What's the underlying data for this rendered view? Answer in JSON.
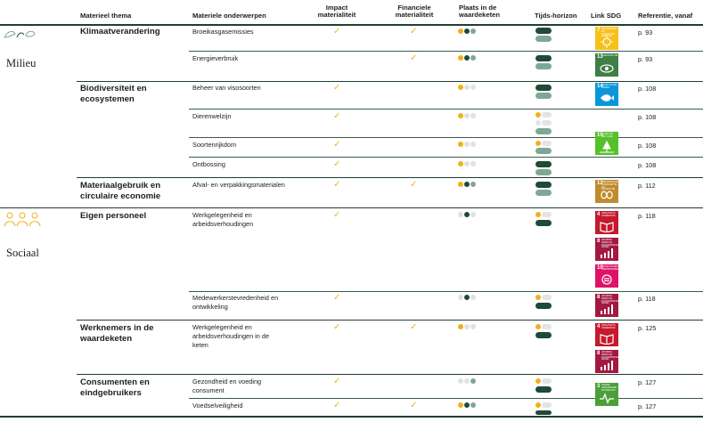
{
  "headers": {
    "theme": "Materieel thema",
    "topics": "Materiele onderwerpen",
    "impact": "Impact materialiteit",
    "financial": "Financiele materialiteit",
    "chain": "Plaats in de waardeketen",
    "horizon": "Tijds-horizon",
    "sdg": "Link SDG",
    "reference": "Referentie, vanaf"
  },
  "categories": {
    "environment": "Milieu",
    "social": "Sociaal"
  },
  "themes": {
    "climate": "Klimaatverandering",
    "biodiversity": "Biodiversiteit en ecosystemen",
    "materials": "Materiaalgebruik en circulaire economie",
    "own_staff": "Eigen personeel",
    "value_chain_workers": "Werknemers in de waardeketen",
    "consumers": "Consumenten en eindgebruikers"
  },
  "topics": {
    "ghg": "Broeikasgasemissies",
    "energy": "Energieverbruik",
    "fish": "Beheer van visosoorten",
    "animal": "Dierenwelzijn",
    "species": "Soortenrijkdom",
    "deforest": "Ontbossing",
    "packaging": "Afval- en verpakkingsmaterialen",
    "work_own": "Werkgelegenheid en arbeidsverhoudingen",
    "satisfaction": "Medewerkerstevredenheid en ontwikkeling",
    "work_chain": "Werkgelegenheid en arbeidsverhoudingen in de keten",
    "health": "Gezondheid en voeding consument",
    "food_safety": "Voedselveiligheid"
  },
  "check_mark": "✓",
  "references": {
    "ghg": "p. 93",
    "energy": "p. 93",
    "fish": "p. 108",
    "animal": "p. 108",
    "species": "p. 108",
    "deforest": "p. 108",
    "packaging": "p. 112",
    "work_own": "p. 118",
    "satisfaction": "p. 118",
    "work_chain": "p. 125",
    "health": "p. 127",
    "food_safety": "p. 127"
  },
  "sdgs": {
    "sdg7": {
      "number": "7",
      "title": "BETAALBARE EN DUURZAME ENERGIE",
      "color": "#f7c01b"
    },
    "sdg13": {
      "number": "13",
      "title": "KLIMAATACTIE",
      "color": "#3f7e44"
    },
    "sdg14": {
      "number": "14",
      "title": "LEVEN IN HET WATER",
      "color": "#0a97d9"
    },
    "sdg15": {
      "number": "15",
      "title": "LEVEN OP HET LAND",
      "color": "#56c02b"
    },
    "sdg12": {
      "number": "12",
      "title": "VERANTWOORDE CONSUMPTIE EN PRODUCTIE",
      "color": "#bf8b2e"
    },
    "sdg4a": {
      "number": "4",
      "title": "KWALITEITS-ONDERWIJS",
      "color": "#c5192d"
    },
    "sdg8a": {
      "number": "8",
      "title": "WAARDIG WERK EN ECONOMISCHE GROEI",
      "color": "#a21942"
    },
    "sdg10": {
      "number": "10",
      "title": "ONGELIJKHEID VERMINDEREN",
      "color": "#dd1367"
    },
    "sdg8b": {
      "number": "8",
      "title": "WAARDIG WERK EN ECONOMISCHE GROEI",
      "color": "#a21942"
    },
    "sdg4b": {
      "number": "4",
      "title": "KWALITEITS-ONDERWIJS",
      "color": "#c5192d"
    },
    "sdg8c": {
      "number": "8",
      "title": "WAARDIG WERK EN ECONOMISCHE GROEI",
      "color": "#a21942"
    },
    "sdg3": {
      "number": "3",
      "title": "GOEDE GEZONDHEID EN WELZIJN",
      "color": "#4c9f38"
    }
  },
  "colors": {
    "check": "#f0b11a",
    "chain_upstream": "#f0b11a",
    "chain_own": "#1f4a36",
    "chain_downstream": "#7fa894",
    "chain_inactive": "#e1e1e1",
    "horizon_short": "#f0b11a",
    "horizon_medium": "#1f4a36",
    "horizon_long": "#7fa894",
    "rule": "#1f3f33"
  }
}
